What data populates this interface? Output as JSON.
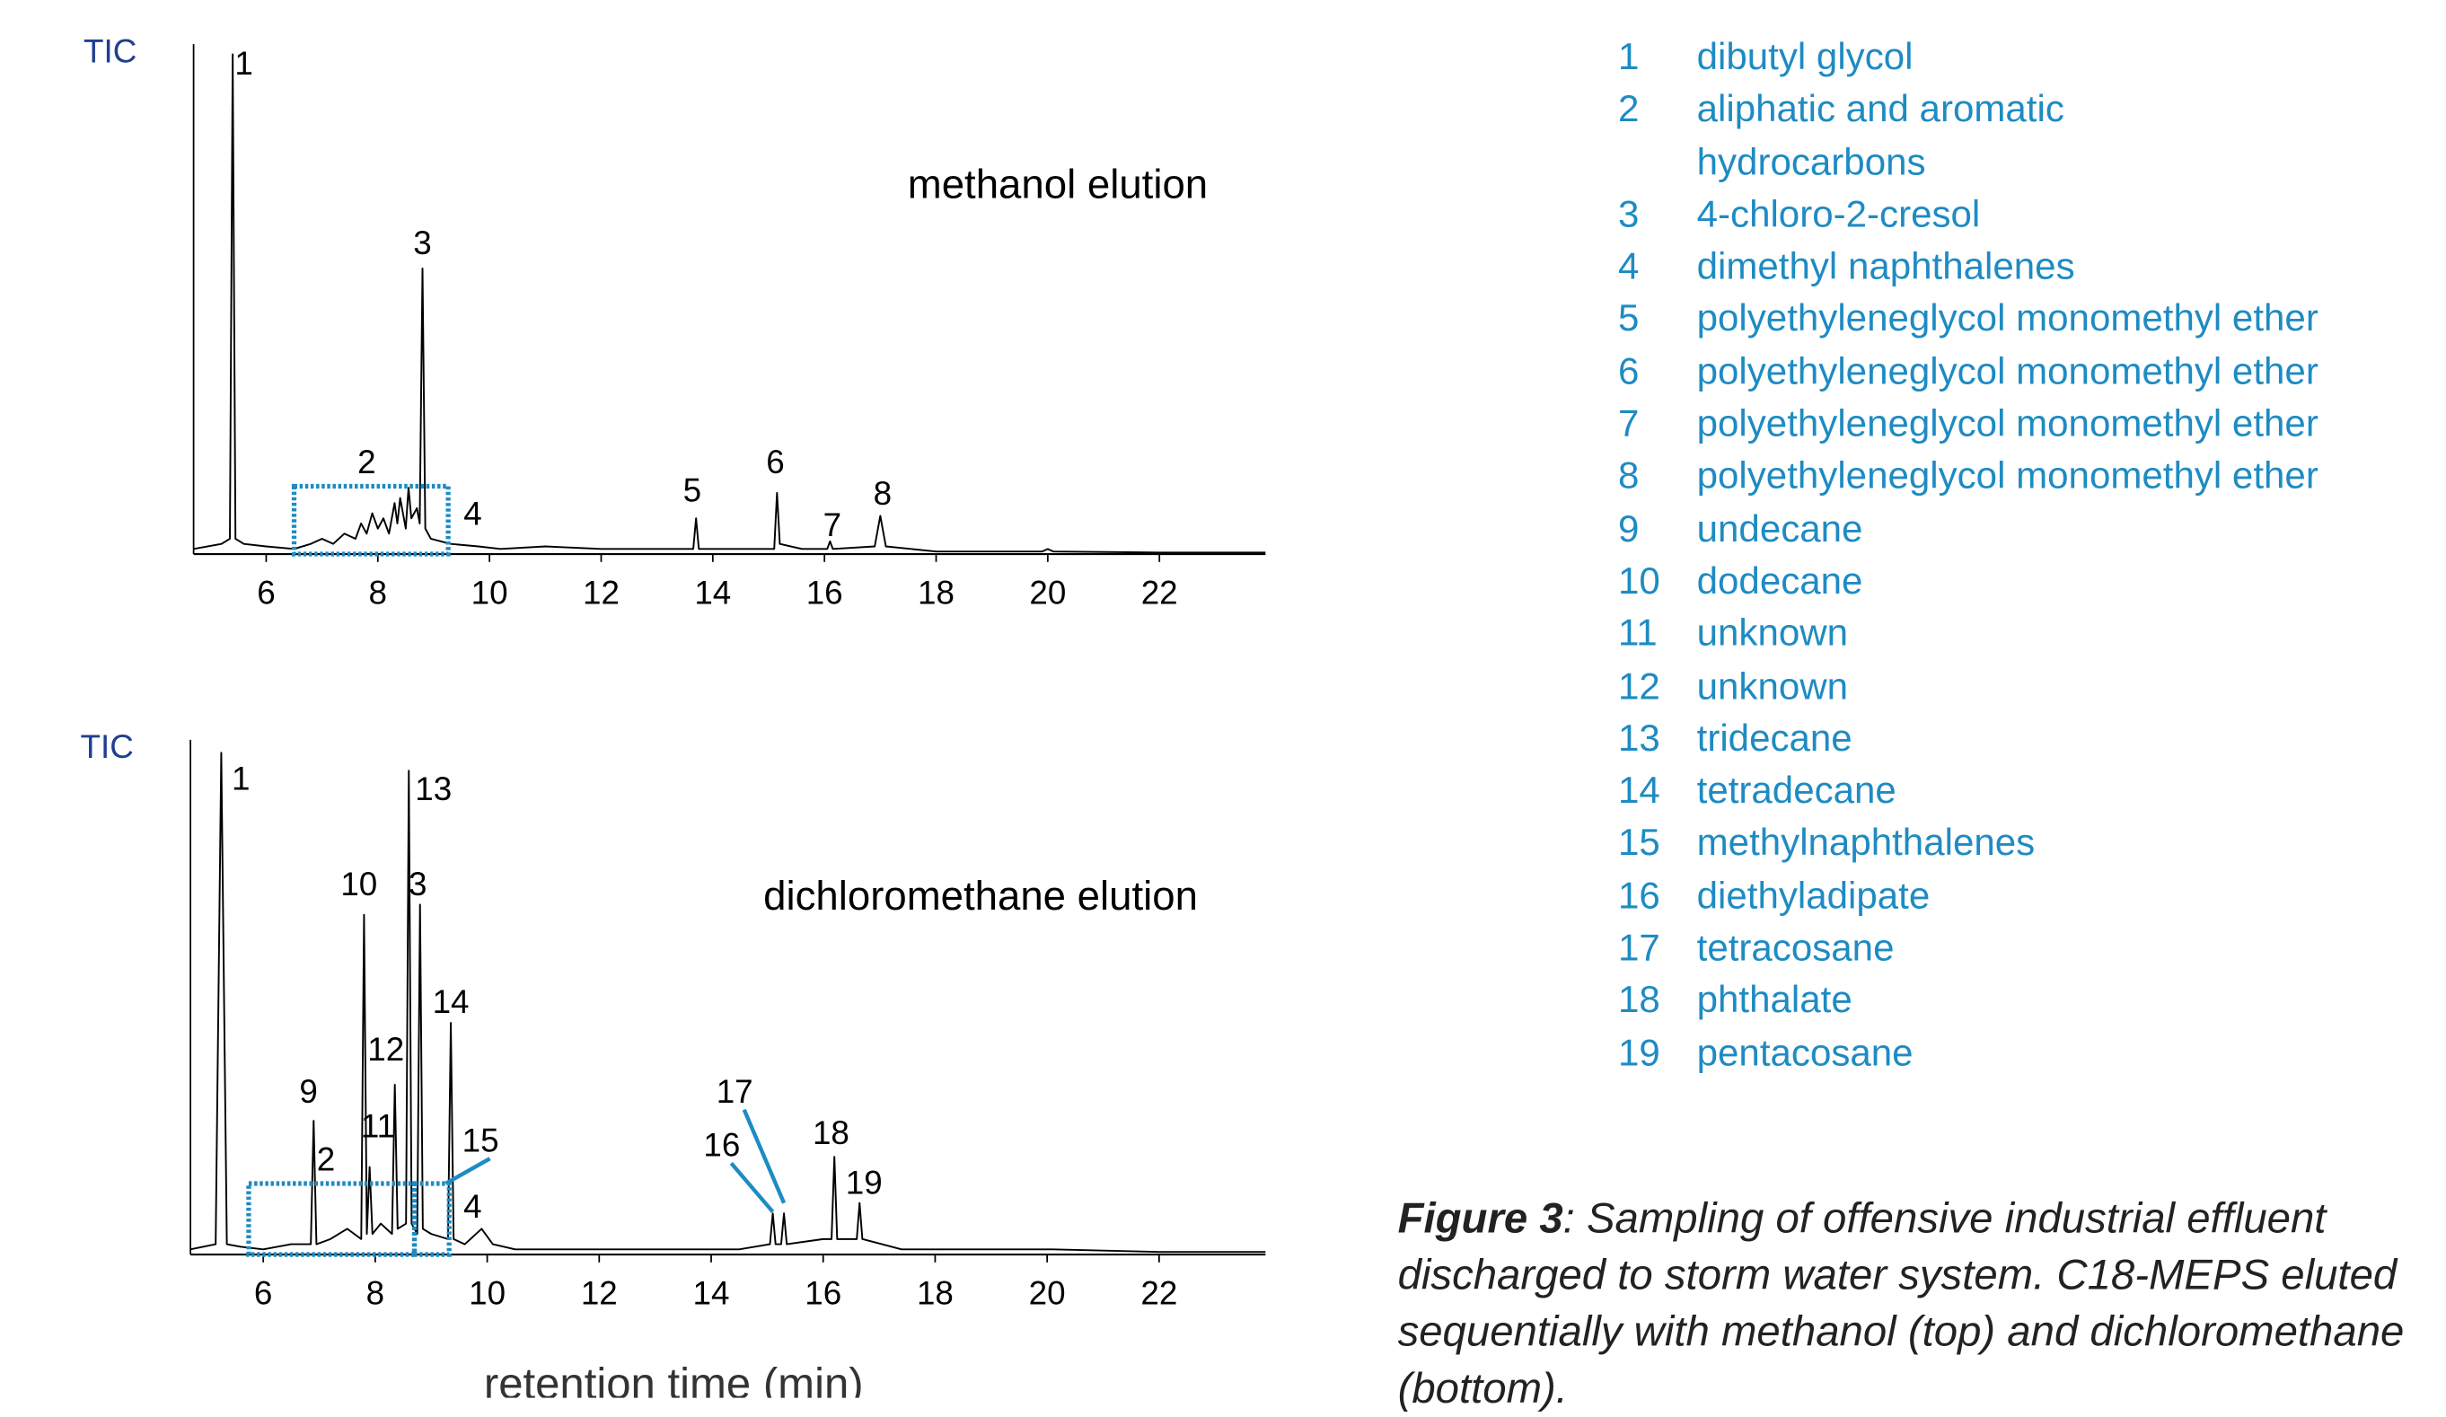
{
  "chart_data": [
    {
      "type": "line",
      "y_label": "TIC",
      "subtitle": "methanol elution",
      "color": "#000000",
      "highlight_color": "#1e8bc3",
      "grid": false,
      "xlim": [
        4.7,
        23.9
      ],
      "xticks": [
        6,
        8,
        10,
        12,
        14,
        16,
        18,
        20,
        22
      ],
      "ylim": [
        0,
        100
      ],
      "x": [
        4.7,
        5.2,
        5.35,
        5.4,
        5.45,
        5.6,
        6.0,
        6.5,
        6.8,
        7.0,
        7.2,
        7.4,
        7.6,
        7.7,
        7.8,
        7.9,
        8.0,
        8.1,
        8.2,
        8.3,
        8.35,
        8.4,
        8.5,
        8.55,
        8.6,
        8.7,
        8.75,
        8.8,
        8.85,
        8.95,
        9.3,
        9.8,
        10.2,
        11,
        12,
        13,
        13.65,
        13.7,
        13.75,
        14.5,
        15.1,
        15.15,
        15.2,
        15.6,
        16.05,
        16.1,
        16.15,
        16.9,
        17.0,
        17.1,
        18,
        19,
        19.9,
        20,
        20.1,
        22,
        23.9
      ],
      "values": [
        1,
        2,
        3,
        98,
        3,
        2,
        1.5,
        1,
        2,
        3,
        2,
        4,
        3,
        6,
        4,
        8,
        5,
        7,
        4,
        10,
        6,
        11,
        5,
        13,
        7,
        9,
        6,
        56,
        5,
        3,
        2,
        1.5,
        1,
        1.5,
        1,
        1,
        1,
        7,
        1,
        1,
        1,
        12,
        2,
        1,
        1,
        2.5,
        1,
        1.5,
        7.5,
        1.5,
        0.5,
        0.5,
        0.5,
        1,
        0.5,
        0.3,
        0.3
      ],
      "highlights": [
        {
          "x": [
            6.5,
            9.26
          ],
          "y": [
            0,
            13.3
          ]
        }
      ],
      "annotations": [
        {
          "text": "1",
          "x": 5.6,
          "y": 95.7
        },
        {
          "text": "2",
          "x": 7.8,
          "y": 17.6
        },
        {
          "text": "3",
          "x": 8.8,
          "y": 60.5
        },
        {
          "text": "4",
          "x": 9.7,
          "y": 7.4
        },
        {
          "text": "5",
          "x": 13.63,
          "y": 12
        },
        {
          "text": "6",
          "x": 15.12,
          "y": 17.6
        },
        {
          "text": "7",
          "x": 16.14,
          "y": 5.2
        },
        {
          "text": "8",
          "x": 17.04,
          "y": 11.4
        }
      ]
    },
    {
      "type": "line",
      "y_label": "TIC",
      "subtitle": "dichloromethane elution",
      "x_label": "retention time  (min)",
      "color": "#000000",
      "highlight_color": "#1e8bc3",
      "grid": false,
      "xlim": [
        4.7,
        23.9
      ],
      "xticks": [
        6,
        8,
        10,
        12,
        14,
        16,
        18,
        20,
        22
      ],
      "ylim": [
        0,
        100
      ],
      "x": [
        4.7,
        5.15,
        5.25,
        5.35,
        5.6,
        6.0,
        6.5,
        6.85,
        6.9,
        6.95,
        7.2,
        7.5,
        7.75,
        7.8,
        7.85,
        7.9,
        7.95,
        8.1,
        8.3,
        8.35,
        8.4,
        8.55,
        8.6,
        8.65,
        8.75,
        8.8,
        8.85,
        9.0,
        9.3,
        9.35,
        9.4,
        9.6,
        9.9,
        10.1,
        10.5,
        12,
        13.1,
        13.8,
        14.5,
        15.05,
        15.1,
        15.15,
        15.25,
        15.3,
        15.35,
        16.0,
        16.15,
        16.2,
        16.25,
        16.6,
        16.65,
        16.7,
        17.4,
        18.5,
        20.1,
        22,
        23.9
      ],
      "values": [
        1,
        2,
        97.5,
        2,
        1.5,
        1,
        2,
        2,
        26,
        2,
        3,
        5,
        3,
        66,
        4,
        17,
        4,
        6,
        4,
        33,
        5,
        6,
        94,
        6,
        4,
        68,
        5,
        4,
        3,
        45,
        3,
        2,
        5,
        2,
        1,
        1,
        1,
        1,
        1,
        2,
        8,
        2,
        2,
        8,
        2,
        3,
        3,
        19,
        3,
        3,
        10,
        3,
        1,
        1,
        1,
        0.5,
        0.5
      ],
      "highlights": [
        {
          "x": [
            5.74,
            8.7
          ],
          "y": [
            0,
            13.8
          ]
        },
        {
          "x": [
            8.7,
            9.32
          ],
          "y": [
            0,
            13.8
          ]
        }
      ],
      "annotations": [
        {
          "text": "1",
          "x": 5.6,
          "y": 92
        },
        {
          "text": "13",
          "x": 9.04,
          "y": 90
        },
        {
          "text": "10",
          "x": 7.71,
          "y": 71.5
        },
        {
          "text": "3",
          "x": 8.76,
          "y": 71.5
        },
        {
          "text": "14",
          "x": 9.35,
          "y": 48.6
        },
        {
          "text": "12",
          "x": 8.19,
          "y": 39.4
        },
        {
          "text": "9",
          "x": 6.81,
          "y": 31.2
        },
        {
          "text": "11",
          "x": 8.05,
          "y": 24.5
        },
        {
          "text": "2",
          "x": 7.12,
          "y": 18
        },
        {
          "text": "15",
          "x": 9.88,
          "y": 21.7,
          "leader": [
            9.26,
            13.8
          ]
        },
        {
          "text": "4",
          "x": 9.74,
          "y": 8.9
        },
        {
          "text": "17",
          "x": 14.42,
          "y": 31.2,
          "leader": [
            15.3,
            10
          ]
        },
        {
          "text": "16",
          "x": 14.19,
          "y": 20.8,
          "leader": [
            15.1,
            8.3
          ]
        },
        {
          "text": "18",
          "x": 16.14,
          "y": 23.2
        },
        {
          "text": "19",
          "x": 16.73,
          "y": 13.5
        }
      ]
    }
  ],
  "compounds": [
    {
      "number": "1",
      "name": "dibutyl glycol"
    },
    {
      "number": "2",
      "name": [
        "aliphatic and aromatic",
        "hydrocarbons"
      ]
    },
    {
      "number": "3",
      "name": "4-chloro-2-cresol"
    },
    {
      "number": "4",
      "name": "dimethyl naphthalenes"
    },
    {
      "number": "5",
      "name": "polyethyleneglycol monomethyl ether"
    },
    {
      "number": "6",
      "name": "polyethyleneglycol monomethyl ether"
    },
    {
      "number": "7",
      "name": "polyethyleneglycol monomethyl ether"
    },
    {
      "number": "8",
      "name": "polyethyleneglycol monomethyl ether"
    },
    {
      "number": "9",
      "name": "undecane"
    },
    {
      "number": "10",
      "name": "dodecane"
    },
    {
      "number": "11",
      "name": "unknown"
    },
    {
      "number": "12",
      "name": "unknown"
    },
    {
      "number": "13",
      "name": "tridecane"
    },
    {
      "number": "14",
      "name": "tetradecane"
    },
    {
      "number": "15",
      "name": "methylnaphthalenes"
    },
    {
      "number": "16",
      "name": "diethyladipate"
    },
    {
      "number": "17",
      "name": "tetracosane"
    },
    {
      "number": "18",
      "name": "phthalate"
    },
    {
      "number": "19",
      "name": "pentacosane"
    }
  ],
  "caption": {
    "label": "Figure 3",
    "text": ": Sampling of offensive industrial effluent discharged to storm water system.  C18-MEPS eluted sequentially with methanol (top) and dichloromethane (bottom)."
  }
}
